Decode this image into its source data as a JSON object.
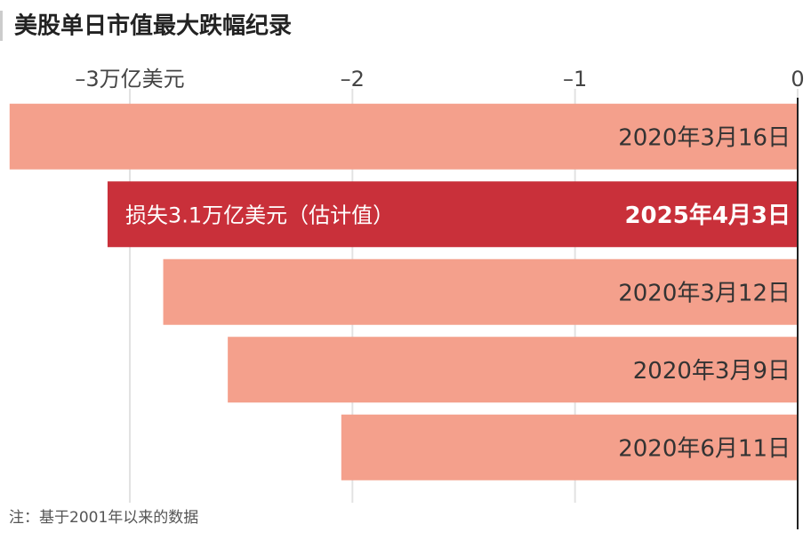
{
  "chart_data": {
    "type": "bar",
    "orientation": "horizontal",
    "title": "美股单日市值最大跌幅纪录",
    "categories": [
      "2020年3月16日",
      "2025年4月3日",
      "2020年3月12日",
      "2020年3月9日",
      "2020年6月11日"
    ],
    "values": [
      -3.54,
      -3.1,
      -2.85,
      -2.56,
      -2.05
    ],
    "colors": [
      "#f4a08c",
      "#c9303a",
      "#f4a08c",
      "#f4a08c",
      "#f4a08c"
    ],
    "annotation": "损失3.1万亿美元（估计值）",
    "xlim": [
      -3.55,
      0
    ],
    "xticks": [
      {
        "value": -3,
        "label": "–3万亿美元"
      },
      {
        "value": -2,
        "label": "–2"
      },
      {
        "value": -1,
        "label": "–1"
      },
      0
    ],
    "grid": true,
    "note": "注：基于2001年以来的数据"
  }
}
